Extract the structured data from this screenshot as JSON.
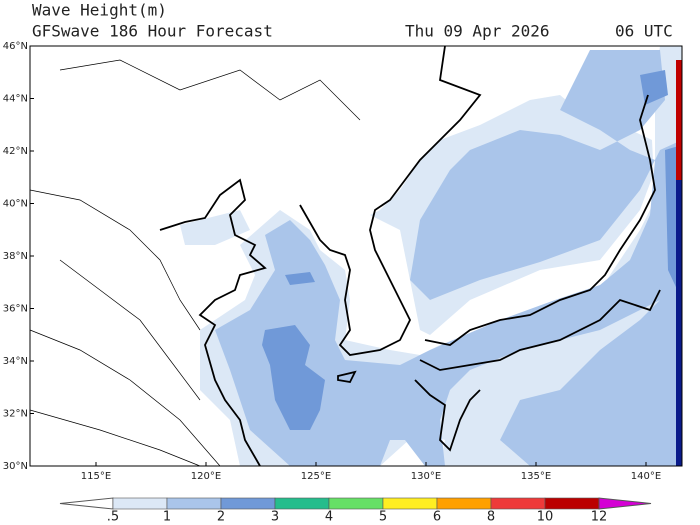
{
  "header": {
    "title": "Wave Height(m)",
    "subtitle": "GFSwave 186 Hour Forecast",
    "date": "Thu 09 Apr 2026",
    "time": "06 UTC"
  },
  "map": {
    "lat_labels": [
      "30°N",
      "32°N",
      "34°N",
      "36°N",
      "38°N",
      "40°N",
      "42°N",
      "44°N",
      "46°N"
    ],
    "lon_labels": [
      "115°E",
      "120°E",
      "125°E",
      "130°E",
      "135°E",
      "140°E"
    ]
  },
  "colorbar": {
    "labels": [
      ".5",
      "1",
      "2",
      "3",
      "4",
      "5",
      "6",
      "8",
      "10",
      "12"
    ],
    "below_color": "#ffffff",
    "above_color": "#d400d4",
    "colors": [
      "#dce8f6",
      "#aac5ea",
      "#7099d8",
      "#25bd8c",
      "#66e066",
      "#ffee22",
      "#ffa000",
      "#ee3a3a",
      "#bb0000"
    ]
  }
}
